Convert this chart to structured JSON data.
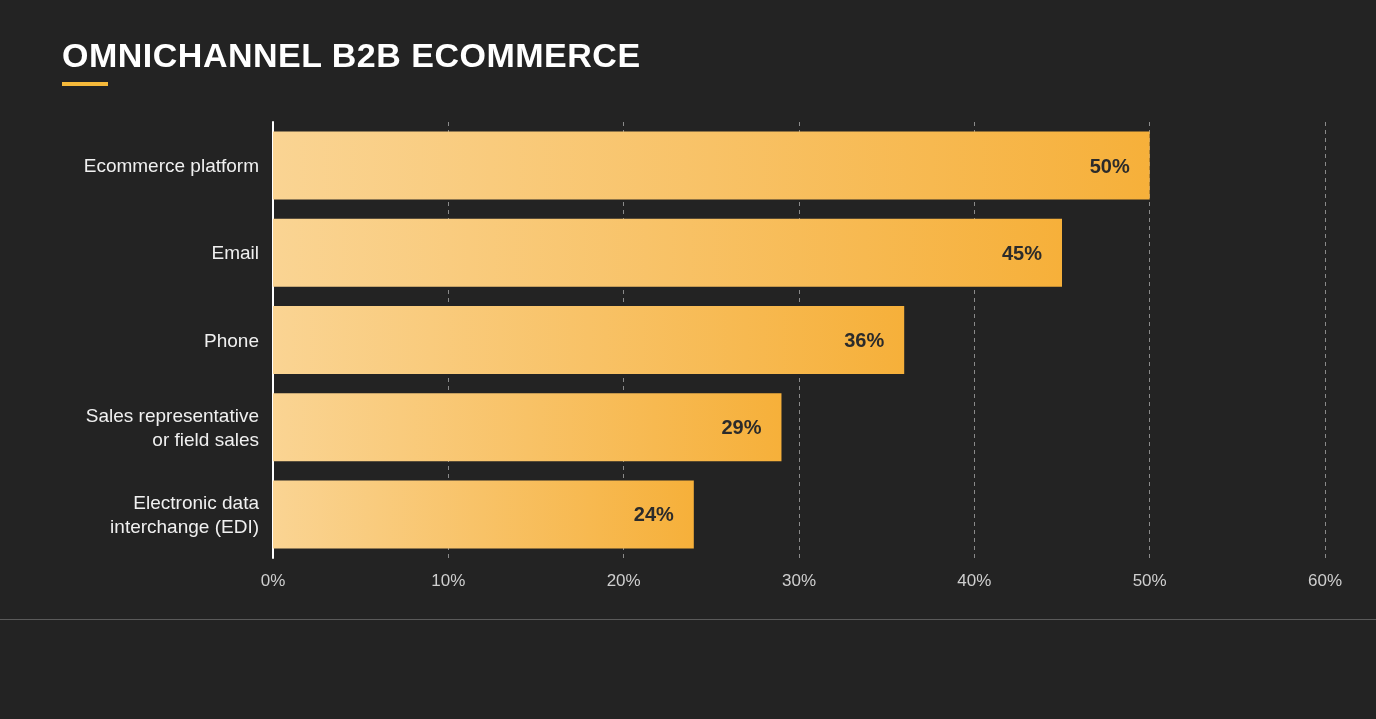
{
  "chart_data": {
    "type": "bar",
    "orientation": "horizontal",
    "title": "OMNICHANNEL B2B ECOMMERCE",
    "categories": [
      "Ecommerce platform",
      "Email",
      "Phone",
      "Sales representative\nor field sales",
      "Electronic data\ninterchange (EDI)"
    ],
    "values": [
      50,
      45,
      36,
      29,
      24
    ],
    "color": "#f6b03a",
    "value_labels": [
      "50%",
      "45%",
      "36%",
      "29%",
      "24%"
    ],
    "xlim": [
      0,
      60
    ],
    "xticks": [
      {
        "value": 0,
        "label": "0%"
      },
      {
        "value": 10,
        "label": "10%"
      },
      {
        "value": 20,
        "label": "20%"
      },
      {
        "value": 30,
        "label": "30%"
      },
      {
        "value": 40,
        "label": "40%"
      },
      {
        "value": 50,
        "label": "50%"
      },
      {
        "value": 60,
        "label": "60%"
      }
    ],
    "grid": "x"
  }
}
